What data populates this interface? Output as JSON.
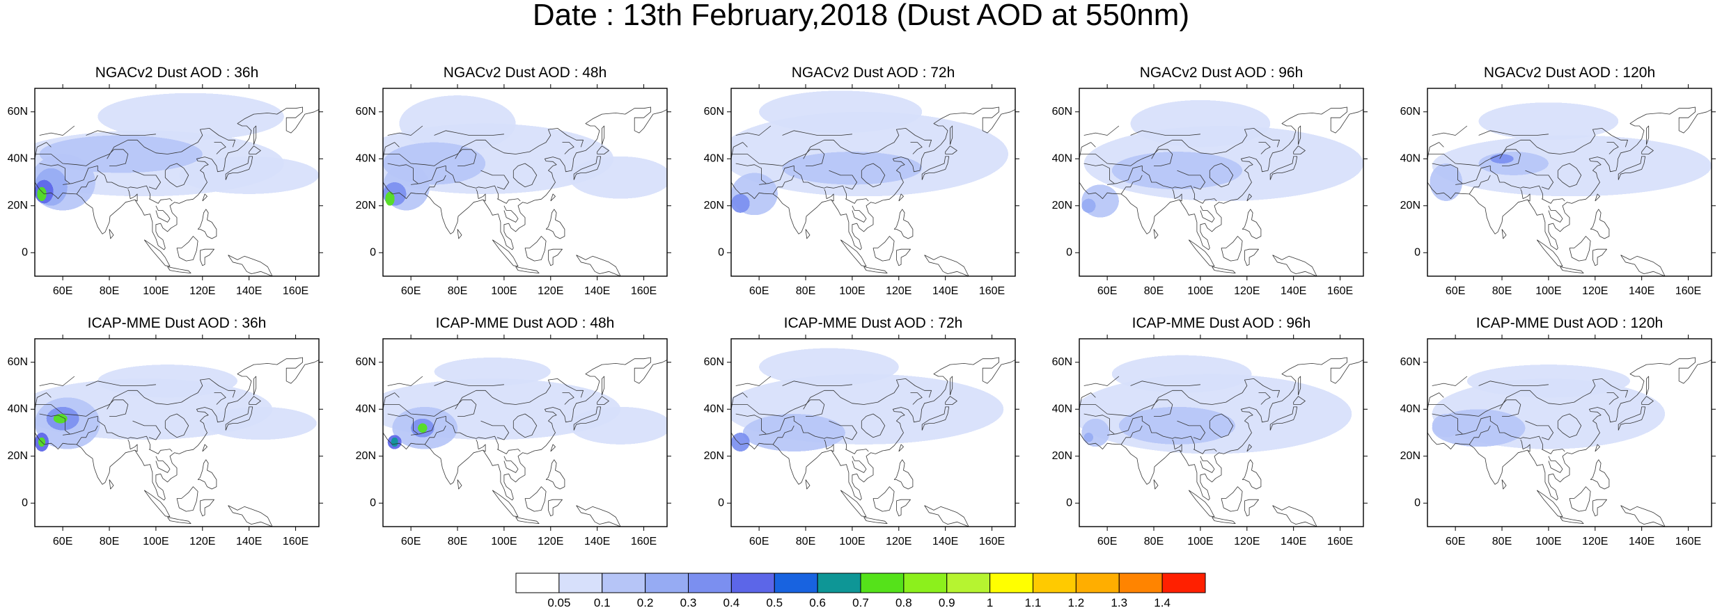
{
  "figure": {
    "title": "Date : 13th February,2018 (Dust AOD at 550nm)"
  },
  "axes": {
    "lat_ticks": [
      {
        "value": 60,
        "label": "60N"
      },
      {
        "value": 40,
        "label": "40N"
      },
      {
        "value": 20,
        "label": "20N"
      },
      {
        "value": 0,
        "label": "0"
      }
    ],
    "lon_ticks": [
      {
        "value": 60,
        "label": "60E"
      },
      {
        "value": 80,
        "label": "80E"
      },
      {
        "value": 100,
        "label": "100E"
      },
      {
        "value": 120,
        "label": "120E"
      },
      {
        "value": 140,
        "label": "140E"
      },
      {
        "value": 160,
        "label": "160E"
      }
    ],
    "lon_range": [
      48,
      170
    ],
    "lat_range": [
      -10,
      70
    ]
  },
  "panels": [
    {
      "title": "NGACv2 Dust AOD : 36h",
      "plumes": [
        {
          "lon": 95,
          "lat": 38,
          "rlon": 60,
          "rlat": 14,
          "level": 1
        },
        {
          "lon": 115,
          "lat": 58,
          "rlon": 40,
          "rlat": 10,
          "level": 1
        },
        {
          "lon": 85,
          "lat": 42,
          "rlon": 35,
          "rlat": 8,
          "level": 2
        },
        {
          "lon": 140,
          "lat": 33,
          "rlon": 30,
          "rlat": 8,
          "level": 1
        },
        {
          "lon": 60,
          "lat": 30,
          "rlon": 14,
          "rlat": 12,
          "level": 2
        },
        {
          "lon": 55,
          "lat": 28,
          "rlon": 7,
          "rlat": 8,
          "level": 3
        },
        {
          "lon": 52,
          "lat": 26,
          "rlon": 4,
          "rlat": 5,
          "level": 5
        },
        {
          "lon": 51,
          "lat": 25,
          "rlon": 2,
          "rlat": 3,
          "level": 8
        }
      ]
    },
    {
      "title": "NGACv2 Dust AOD : 48h",
      "plumes": [
        {
          "lon": 92,
          "lat": 40,
          "rlon": 55,
          "rlat": 15,
          "level": 1
        },
        {
          "lon": 80,
          "lat": 55,
          "rlon": 25,
          "rlat": 12,
          "level": 1
        },
        {
          "lon": 150,
          "lat": 32,
          "rlon": 22,
          "rlat": 9,
          "level": 1
        },
        {
          "lon": 70,
          "lat": 38,
          "rlon": 22,
          "rlat": 9,
          "level": 2
        },
        {
          "lon": 58,
          "lat": 28,
          "rlon": 10,
          "rlat": 10,
          "level": 2
        },
        {
          "lon": 53,
          "lat": 25,
          "rlon": 5,
          "rlat": 5,
          "level": 4
        },
        {
          "lon": 51,
          "lat": 23,
          "rlon": 2,
          "rlat": 3,
          "level": 8
        }
      ]
    },
    {
      "title": "NGACv2 Dust AOD : 72h",
      "plumes": [
        {
          "lon": 105,
          "lat": 42,
          "rlon": 62,
          "rlat": 18,
          "level": 1
        },
        {
          "lon": 95,
          "lat": 60,
          "rlon": 35,
          "rlat": 9,
          "level": 1
        },
        {
          "lon": 100,
          "lat": 36,
          "rlon": 30,
          "rlat": 7,
          "level": 2
        },
        {
          "lon": 58,
          "lat": 25,
          "rlon": 10,
          "rlat": 9,
          "level": 2
        },
        {
          "lon": 52,
          "lat": 21,
          "rlon": 4,
          "rlat": 4,
          "level": 4
        }
      ]
    },
    {
      "title": "NGACv2 Dust AOD : 96h",
      "plumes": [
        {
          "lon": 110,
          "lat": 38,
          "rlon": 60,
          "rlat": 16,
          "level": 1
        },
        {
          "lon": 100,
          "lat": 55,
          "rlon": 30,
          "rlat": 10,
          "level": 1
        },
        {
          "lon": 90,
          "lat": 35,
          "rlon": 28,
          "rlat": 8,
          "level": 2
        },
        {
          "lon": 57,
          "lat": 22,
          "rlon": 8,
          "rlat": 7,
          "level": 2
        },
        {
          "lon": 52,
          "lat": 20,
          "rlon": 3,
          "rlat": 3,
          "level": 3
        }
      ]
    },
    {
      "title": "NGACv2 Dust AOD : 120h",
      "plumes": [
        {
          "lon": 110,
          "lat": 37,
          "rlon": 60,
          "rlat": 13,
          "level": 1
        },
        {
          "lon": 100,
          "lat": 56,
          "rlon": 30,
          "rlat": 8,
          "level": 1
        },
        {
          "lon": 85,
          "lat": 38,
          "rlon": 15,
          "rlat": 5,
          "level": 2
        },
        {
          "lon": 80,
          "lat": 40,
          "rlon": 5,
          "rlat": 2,
          "level": 4
        },
        {
          "lon": 56,
          "lat": 30,
          "rlon": 7,
          "rlat": 8,
          "level": 2
        }
      ]
    },
    {
      "title": "ICAP-MME Dust AOD : 36h",
      "plumes": [
        {
          "lon": 95,
          "lat": 40,
          "rlon": 55,
          "rlat": 13,
          "level": 1
        },
        {
          "lon": 105,
          "lat": 52,
          "rlon": 30,
          "rlat": 7,
          "level": 1
        },
        {
          "lon": 145,
          "lat": 34,
          "rlon": 24,
          "rlat": 7,
          "level": 1
        },
        {
          "lon": 62,
          "lat": 34,
          "rlon": 14,
          "rlat": 11,
          "level": 2
        },
        {
          "lon": 60,
          "lat": 36,
          "rlon": 7,
          "rlat": 5,
          "level": 4
        },
        {
          "lon": 59,
          "lat": 36,
          "rlon": 3,
          "rlat": 2,
          "level": 8
        },
        {
          "lon": 51,
          "lat": 26,
          "rlon": 3,
          "rlat": 4,
          "level": 5
        },
        {
          "lon": 51,
          "lat": 26,
          "rlon": 1.5,
          "rlat": 2,
          "level": 8
        }
      ]
    },
    {
      "title": "ICAP-MME Dust AOD : 48h",
      "plumes": [
        {
          "lon": 95,
          "lat": 40,
          "rlon": 55,
          "rlat": 13,
          "level": 1
        },
        {
          "lon": 95,
          "lat": 56,
          "rlon": 25,
          "rlat": 6,
          "level": 1
        },
        {
          "lon": 150,
          "lat": 33,
          "rlon": 22,
          "rlat": 8,
          "level": 1
        },
        {
          "lon": 66,
          "lat": 32,
          "rlon": 14,
          "rlat": 9,
          "level": 2
        },
        {
          "lon": 65,
          "lat": 32,
          "rlon": 5,
          "rlat": 4,
          "level": 4
        },
        {
          "lon": 65,
          "lat": 32,
          "rlon": 2,
          "rlat": 2,
          "level": 8
        },
        {
          "lon": 53,
          "lat": 26,
          "rlon": 3,
          "rlat": 3,
          "level": 5
        },
        {
          "lon": 53,
          "lat": 26,
          "rlon": 1.5,
          "rlat": 2,
          "level": 7
        }
      ]
    },
    {
      "title": "ICAP-MME Dust AOD : 72h",
      "plumes": [
        {
          "lon": 105,
          "lat": 40,
          "rlon": 60,
          "rlat": 15,
          "level": 1
        },
        {
          "lon": 90,
          "lat": 58,
          "rlon": 30,
          "rlat": 8,
          "level": 1
        },
        {
          "lon": 75,
          "lat": 30,
          "rlon": 22,
          "rlat": 8,
          "level": 2
        },
        {
          "lon": 52,
          "lat": 26,
          "rlon": 4,
          "rlat": 4,
          "level": 4
        }
      ]
    },
    {
      "title": "ICAP-MME Dust AOD : 96h",
      "plumes": [
        {
          "lon": 105,
          "lat": 38,
          "rlon": 60,
          "rlat": 17,
          "level": 1
        },
        {
          "lon": 92,
          "lat": 55,
          "rlon": 30,
          "rlat": 8,
          "level": 1
        },
        {
          "lon": 90,
          "lat": 33,
          "rlon": 25,
          "rlat": 8,
          "level": 2
        },
        {
          "lon": 55,
          "lat": 30,
          "rlon": 6,
          "rlat": 6,
          "level": 2
        },
        {
          "lon": 52,
          "lat": 28,
          "rlon": 2,
          "rlat": 2,
          "level": 3
        }
      ]
    },
    {
      "title": "ICAP-MME Dust AOD : 120h",
      "plumes": [
        {
          "lon": 100,
          "lat": 38,
          "rlon": 50,
          "rlat": 15,
          "level": 1
        },
        {
          "lon": 100,
          "lat": 52,
          "rlon": 35,
          "rlat": 7,
          "level": 1
        },
        {
          "lon": 70,
          "lat": 32,
          "rlon": 20,
          "rlat": 8,
          "level": 2
        },
        {
          "lon": 56,
          "lat": 33,
          "rlon": 6,
          "rlat": 5,
          "level": 2
        }
      ]
    }
  ],
  "colorbar": {
    "colors": [
      "#ffffff",
      "#d7e0fb",
      "#b6c5f7",
      "#96abf3",
      "#7b8ff0",
      "#5c66e8",
      "#1863e0",
      "#0e9696",
      "#55e21a",
      "#8cf01c",
      "#b6f430",
      "#ffff00",
      "#ffca00",
      "#ffae00",
      "#ff8400",
      "#ff2000"
    ],
    "labels": [
      "0.05",
      "0.1",
      "0.2",
      "0.3",
      "0.4",
      "0.5",
      "0.6",
      "0.7",
      "0.8",
      "0.9",
      "1",
      "1.1",
      "1.2",
      "1.3",
      "1.4"
    ]
  }
}
